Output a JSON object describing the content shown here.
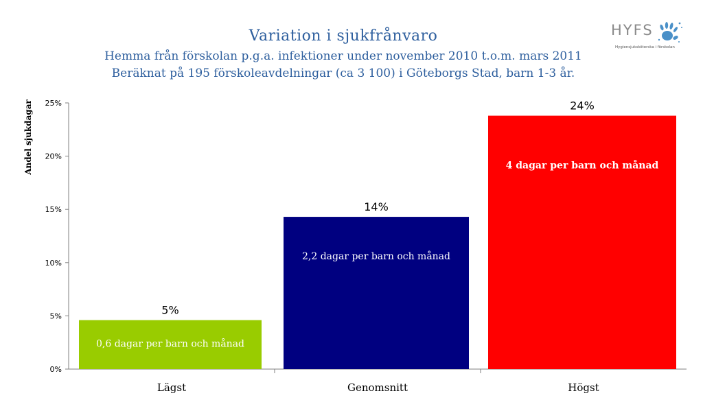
{
  "header": {
    "title": "Variation i sjukfrånvaro",
    "subtitle_1": "Hemma från förskolan p.g.a. infektioner under november 2010 t.o.m. mars 2011",
    "subtitle_2": "Beräknat på 195 förskoleavdelningar (ca 3 100) i Göteborgs Stad, barn 1-3 år."
  },
  "logo": {
    "name": "HYFS",
    "tagline": "Hygiensjuksköterska i förskolan",
    "icon": "hand-print-icon",
    "color": "#4a90c8"
  },
  "chart_data": {
    "type": "bar",
    "title": "Variation i sjukfrånvaro",
    "xlabel": "",
    "ylabel": "Andel sjukdagar",
    "ylim": [
      0,
      0.25
    ],
    "yticks": [
      "0%",
      "5%",
      "10%",
      "15%",
      "20%",
      "25%"
    ],
    "categories": [
      "Lägst",
      "Genomsnitt",
      "Högst"
    ],
    "values": [
      0.046,
      0.143,
      0.238
    ],
    "value_labels": [
      "5%",
      "14%",
      "24%"
    ],
    "annotations": [
      "0,6 dagar per barn och månad",
      "2,2 dagar per barn och månad",
      "4 dagar per barn och månad"
    ],
    "colors": [
      "#99cc00",
      "#000080",
      "#ff0000"
    ],
    "grid": false,
    "legend": "none"
  }
}
